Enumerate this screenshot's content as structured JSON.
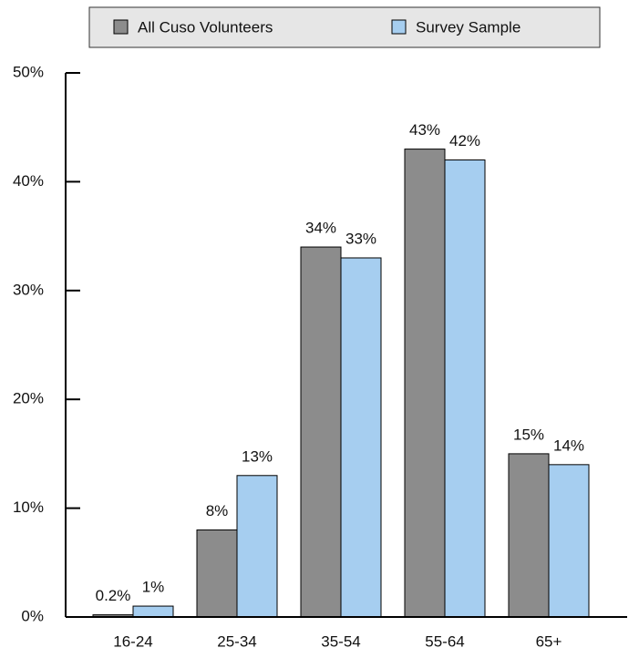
{
  "chart_data": {
    "type": "bar",
    "categories": [
      "16-24",
      "25-34",
      "35-54",
      "55-64",
      "65+"
    ],
    "series": [
      {
        "name": "All Cuso Volunteers",
        "color": "#8c8c8c",
        "values": [
          0.2,
          8,
          34,
          43,
          15
        ],
        "value_labels": [
          "0.2%",
          "8%",
          "34%",
          "43%",
          "15%"
        ]
      },
      {
        "name": "Survey Sample",
        "color": "#a6cef0",
        "values": [
          1,
          13,
          33,
          42,
          14
        ],
        "value_labels": [
          "1%",
          "13%",
          "33%",
          "42%",
          "14%"
        ]
      }
    ],
    "ylim": [
      0,
      50
    ],
    "yticks": [
      {
        "value": 0,
        "label": "0%"
      },
      {
        "value": 10,
        "label": "10%"
      },
      {
        "value": 20,
        "label": "20%"
      },
      {
        "value": 30,
        "label": "30%"
      },
      {
        "value": 40,
        "label": "40%"
      },
      {
        "value": 50,
        "label": "50%"
      }
    ],
    "legend": "top"
  }
}
